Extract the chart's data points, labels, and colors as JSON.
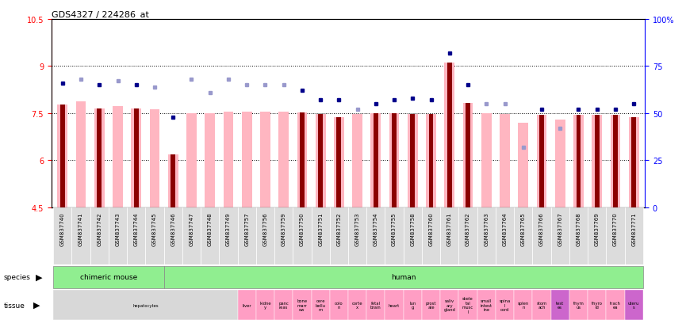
{
  "title": "GDS4327 / 224286_at",
  "samples": [
    "GSM837740",
    "GSM837741",
    "GSM837742",
    "GSM837743",
    "GSM837744",
    "GSM837745",
    "GSM837746",
    "GSM837747",
    "GSM837748",
    "GSM837749",
    "GSM837757",
    "GSM837756",
    "GSM837759",
    "GSM837750",
    "GSM837751",
    "GSM837752",
    "GSM837753",
    "GSM837754",
    "GSM837755",
    "GSM837758",
    "GSM837760",
    "GSM837761",
    "GSM837762",
    "GSM837763",
    "GSM837764",
    "GSM837765",
    "GSM837766",
    "GSM837767",
    "GSM837768",
    "GSM837769",
    "GSM837770",
    "GSM837771"
  ],
  "transformed_count": [
    7.78,
    7.88,
    7.65,
    7.73,
    7.65,
    7.62,
    6.18,
    7.5,
    7.5,
    7.55,
    7.55,
    7.55,
    7.55,
    7.52,
    7.47,
    7.38,
    7.48,
    7.5,
    7.5,
    7.48,
    7.47,
    9.1,
    7.82,
    7.5,
    7.47,
    7.2,
    7.45,
    7.3,
    7.45,
    7.45,
    7.45,
    7.38
  ],
  "percentile_rank": [
    66,
    68,
    65,
    67,
    65,
    64,
    48,
    68,
    61,
    68,
    65,
    65,
    65,
    62,
    57,
    57,
    52,
    55,
    57,
    58,
    57,
    82,
    65,
    55,
    55,
    32,
    52,
    42,
    52,
    52,
    52,
    55
  ],
  "detection_absent": [
    false,
    true,
    false,
    true,
    false,
    true,
    false,
    true,
    true,
    true,
    true,
    true,
    true,
    false,
    false,
    false,
    true,
    false,
    false,
    false,
    false,
    false,
    false,
    true,
    true,
    true,
    false,
    true,
    false,
    false,
    false,
    false
  ],
  "ylim_left": [
    4.5,
    10.5
  ],
  "ylim_right": [
    0,
    100
  ],
  "yticks_left": [
    4.5,
    6.0,
    7.5,
    9.0,
    10.5
  ],
  "yticks_right": [
    0,
    25,
    50,
    75,
    100
  ],
  "ytick_labels_left": [
    "4.5",
    "6",
    "7.5",
    "9",
    "10.5"
  ],
  "ytick_labels_right": [
    "0",
    "25",
    "50",
    "75",
    "100%"
  ],
  "hlines": [
    6.0,
    7.5,
    9.0
  ],
  "bar_color_present": "#8B0000",
  "bar_color_absent_bg": "#FFB6C1",
  "dot_color_present": "#00008B",
  "dot_color_absent": "#9999CC",
  "bar_width": 0.55,
  "tissue_data": [
    {
      "start": 0,
      "end": 9,
      "label": "hepatocytes",
      "color": "#D8D8D8"
    },
    {
      "start": 10,
      "end": 10,
      "label": "liver",
      "color": "#FF9EC4"
    },
    {
      "start": 11,
      "end": 11,
      "label": "kidne\ny",
      "color": "#FF9EC4"
    },
    {
      "start": 12,
      "end": 12,
      "label": "panc\nreas",
      "color": "#FF9EC4"
    },
    {
      "start": 13,
      "end": 13,
      "label": "bone\nmarr\now",
      "color": "#FF9EC4"
    },
    {
      "start": 14,
      "end": 14,
      "label": "cere\nbellu\nm",
      "color": "#FF9EC4"
    },
    {
      "start": 15,
      "end": 15,
      "label": "colo\nn",
      "color": "#FF9EC4"
    },
    {
      "start": 16,
      "end": 16,
      "label": "corte\nx",
      "color": "#FF9EC4"
    },
    {
      "start": 17,
      "end": 17,
      "label": "fetal\nbrain",
      "color": "#FF9EC4"
    },
    {
      "start": 18,
      "end": 18,
      "label": "heart",
      "color": "#FF9EC4"
    },
    {
      "start": 19,
      "end": 19,
      "label": "lun\ng",
      "color": "#FF9EC4"
    },
    {
      "start": 20,
      "end": 20,
      "label": "prost\nate",
      "color": "#FF9EC4"
    },
    {
      "start": 21,
      "end": 21,
      "label": "saliv\nary\ngland",
      "color": "#FF9EC4"
    },
    {
      "start": 22,
      "end": 22,
      "label": "skele\ntal\nmusc\nl",
      "color": "#FF9EC4"
    },
    {
      "start": 23,
      "end": 23,
      "label": "small\nintest\nine",
      "color": "#FF9EC4"
    },
    {
      "start": 24,
      "end": 24,
      "label": "spina\nl\ncord",
      "color": "#FF9EC4"
    },
    {
      "start": 25,
      "end": 25,
      "label": "splen\nn",
      "color": "#FF9EC4"
    },
    {
      "start": 26,
      "end": 26,
      "label": "stom\nach",
      "color": "#FF9EC4"
    },
    {
      "start": 27,
      "end": 27,
      "label": "test\nes",
      "color": "#CC66CC"
    },
    {
      "start": 28,
      "end": 28,
      "label": "thym\nus",
      "color": "#FF9EC4"
    },
    {
      "start": 29,
      "end": 29,
      "label": "thyro\nid",
      "color": "#FF9EC4"
    },
    {
      "start": 30,
      "end": 30,
      "label": "trach\nea",
      "color": "#FF9EC4"
    },
    {
      "start": 31,
      "end": 31,
      "label": "uteru\ns",
      "color": "#CC66CC"
    }
  ]
}
